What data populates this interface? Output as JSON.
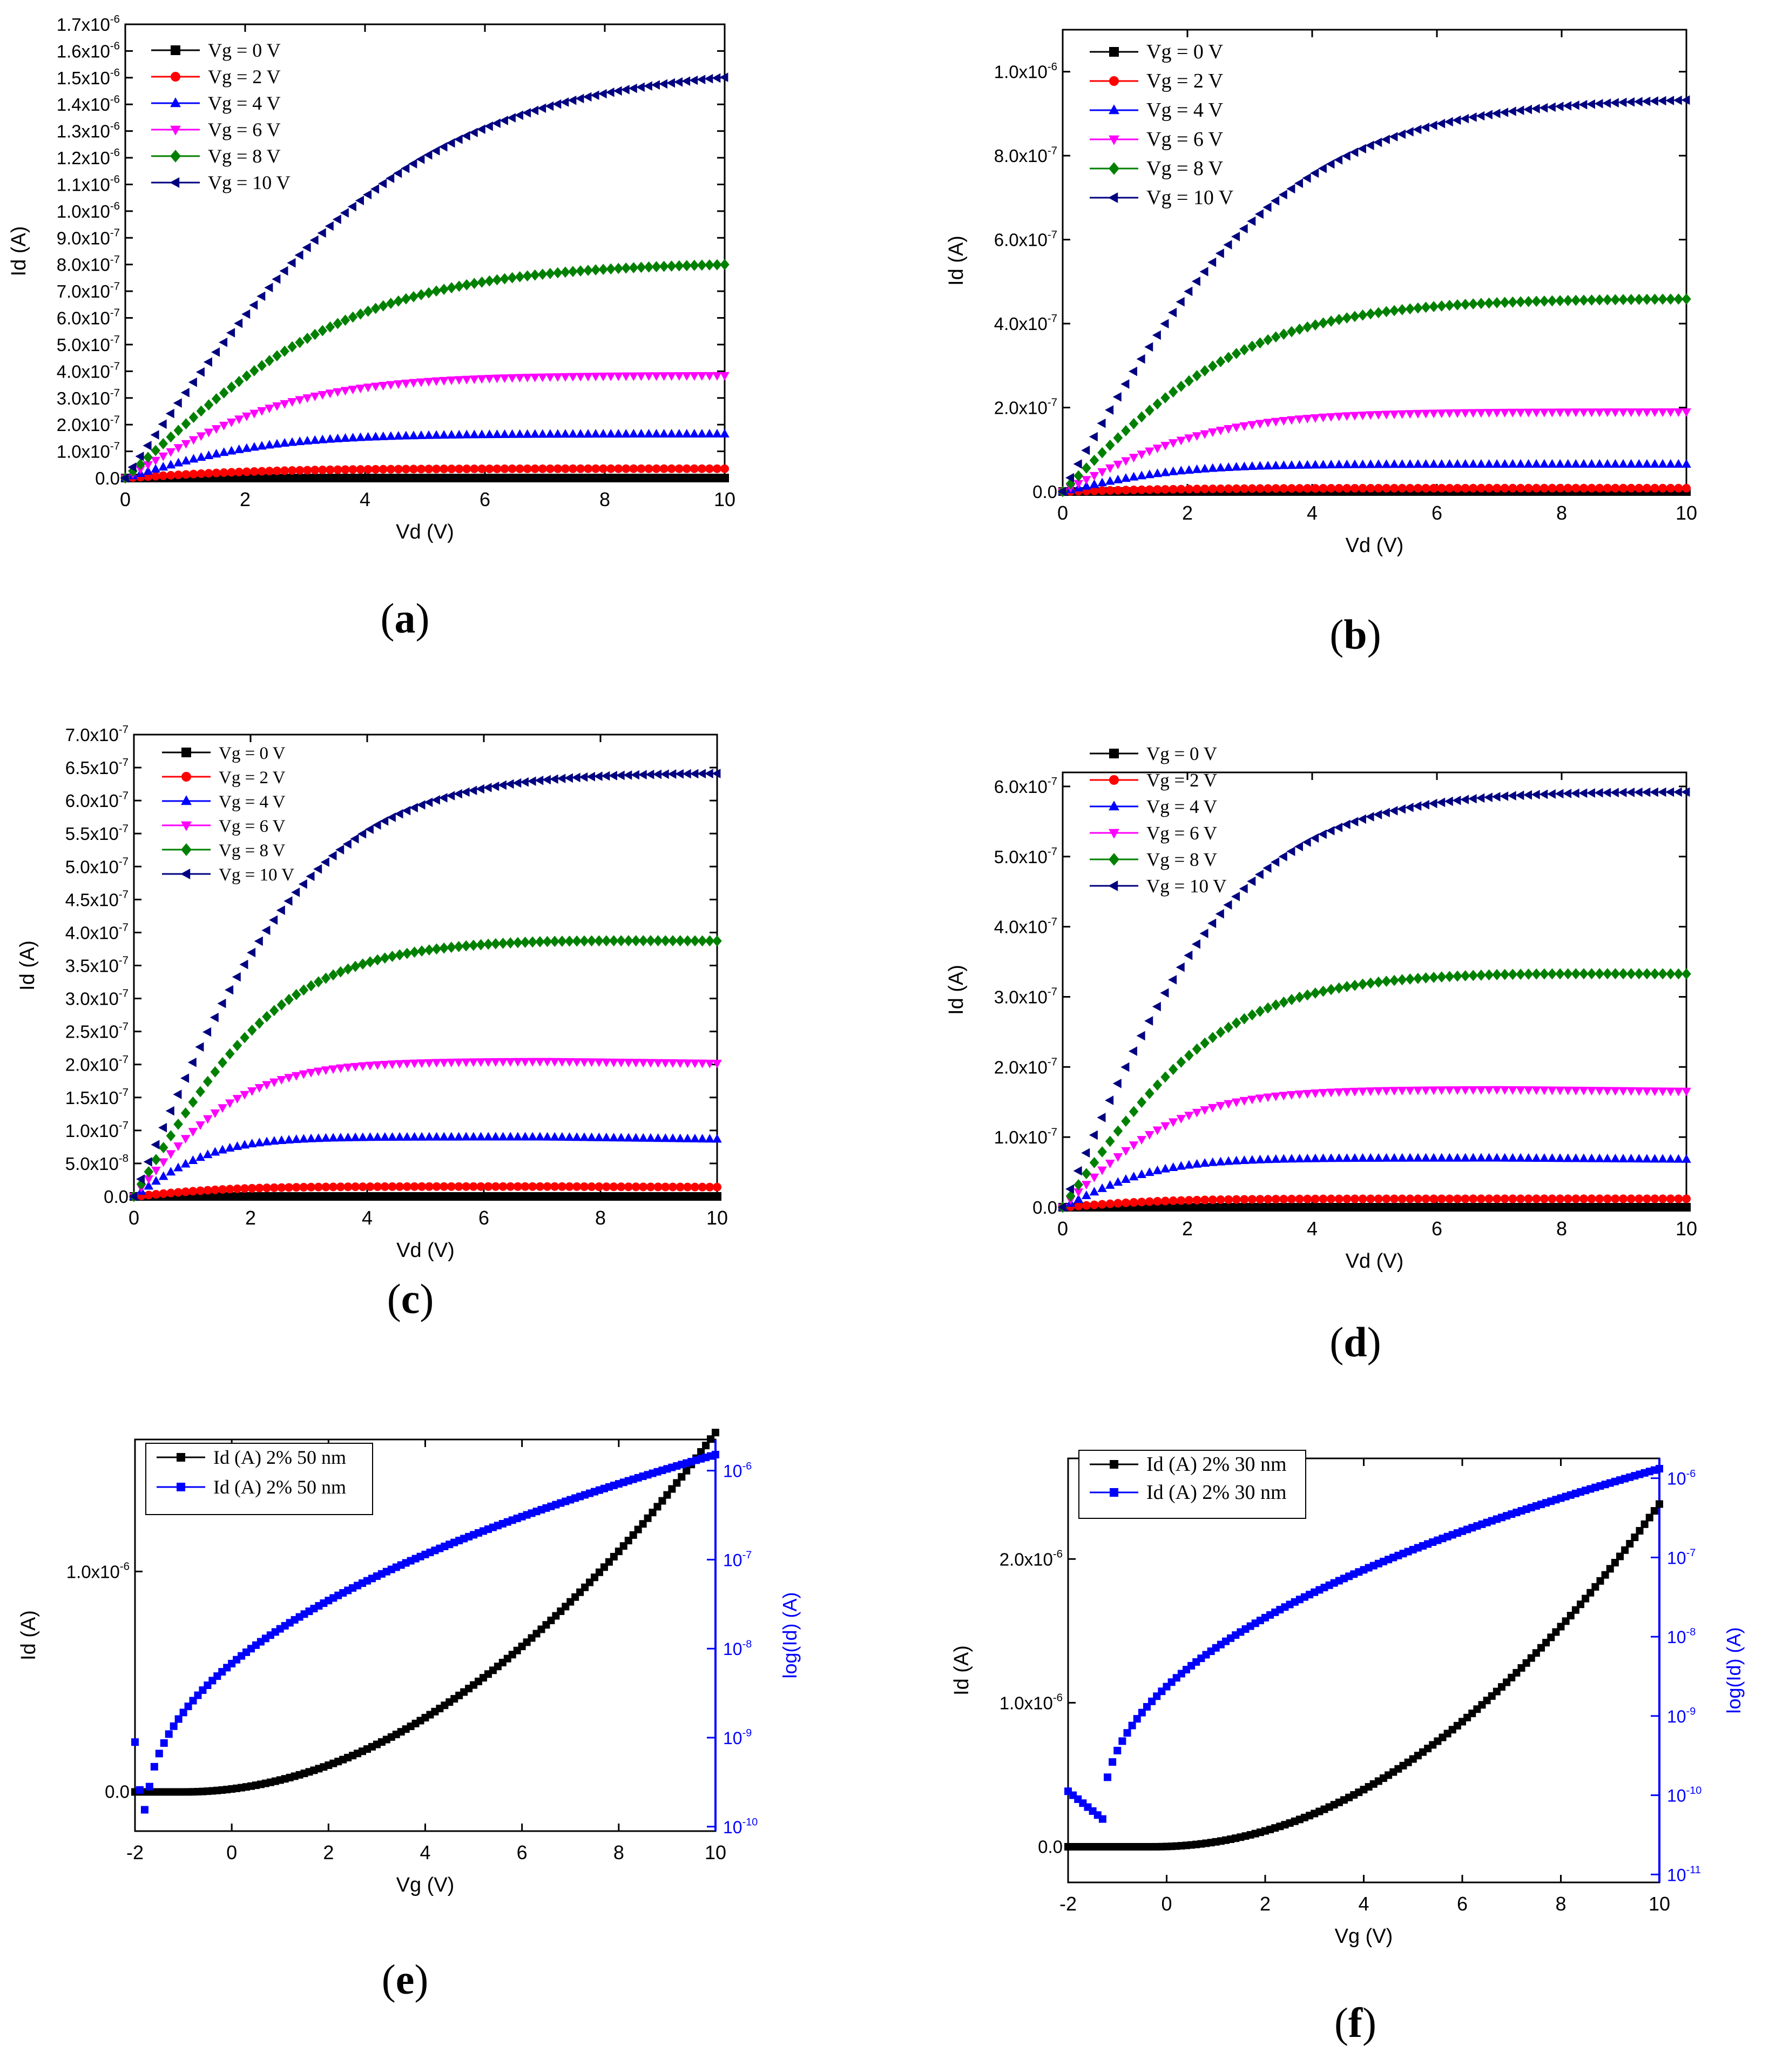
{
  "chart_data": [
    {
      "id": "a",
      "caption_letter": "a",
      "type": "line",
      "xlabel": "Vd (V)",
      "ylabel": "Id (A)",
      "xlim": [
        0,
        10
      ],
      "ylim": [
        0,
        1.7e-06
      ],
      "xticks": [
        "0",
        "2",
        "4",
        "6",
        "8",
        "10"
      ],
      "yticks": [
        {
          "mant": "0.0",
          "exp": ""
        },
        {
          "mant": "1.0x10",
          "exp": "-7"
        },
        {
          "mant": "2.0x10",
          "exp": "-7"
        },
        {
          "mant": "3.0x10",
          "exp": "-7"
        },
        {
          "mant": "4.0x10",
          "exp": "-7"
        },
        {
          "mant": "5.0x10",
          "exp": "-7"
        },
        {
          "mant": "6.0x10",
          "exp": "-7"
        },
        {
          "mant": "7.0x10",
          "exp": "-7"
        },
        {
          "mant": "8.0x10",
          "exp": "-7"
        },
        {
          "mant": "9.0x10",
          "exp": "-7"
        },
        {
          "mant": "1.0x10",
          "exp": "-6"
        },
        {
          "mant": "1.1x10",
          "exp": "-6"
        },
        {
          "mant": "1.2x10",
          "exp": "-6"
        },
        {
          "mant": "1.3x10",
          "exp": "-6"
        },
        {
          "mant": "1.4x10",
          "exp": "-6"
        },
        {
          "mant": "1.5x10",
          "exp": "-6"
        },
        {
          "mant": "1.6x10",
          "exp": "-6"
        },
        {
          "mant": "1.7x10",
          "exp": "-6"
        }
      ],
      "ytick_values": [
        0,
        1e-07,
        2e-07,
        3e-07,
        4e-07,
        5e-07,
        6e-07,
        7e-07,
        8e-07,
        9e-07,
        1e-06,
        1.1e-06,
        1.2e-06,
        1.3e-06,
        1.4e-06,
        1.5e-06,
        1.6e-06,
        1.7e-06
      ],
      "series": [
        {
          "name": "Vg = 0 V",
          "color": "#000000",
          "marker": "square",
          "sat": 0,
          "k": 0.35
        },
        {
          "name": "Vg = 2 V",
          "color": "#ff0000",
          "marker": "circle",
          "sat": 3.5e-08,
          "k": 0.35
        },
        {
          "name": "Vg = 4 V",
          "color": "#0000ff",
          "marker": "triangle-up",
          "sat": 1.65e-07,
          "k": 0.35
        },
        {
          "name": "Vg = 6 V",
          "color": "#ff00ff",
          "marker": "triangle-down",
          "sat": 3.85e-07,
          "k": 0.3
        },
        {
          "name": "Vg = 8 V",
          "color": "#008000",
          "marker": "diamond",
          "sat": 8.1e-07,
          "k": 0.22
        },
        {
          "name": "Vg = 10 V",
          "color": "#000080",
          "marker": "triangle-left",
          "sat": 1.55e-06,
          "k": 0.18
        }
      ]
    },
    {
      "id": "b",
      "caption_letter": "b",
      "type": "line",
      "xlabel": "Vd (V)",
      "ylabel": "Id (A)",
      "xlim": [
        0,
        10
      ],
      "ylim": [
        0,
        1.1e-06
      ],
      "xticks": [
        "0",
        "2",
        "4",
        "6",
        "8",
        "10"
      ],
      "yticks": [
        {
          "mant": "0.0",
          "exp": ""
        },
        {
          "mant": "2.0x10",
          "exp": "-7"
        },
        {
          "mant": "4.0x10",
          "exp": "-7"
        },
        {
          "mant": "6.0x10",
          "exp": "-7"
        },
        {
          "mant": "8.0x10",
          "exp": "-7"
        },
        {
          "mant": "1.0x10",
          "exp": "-6"
        }
      ],
      "ytick_values": [
        0,
        2e-07,
        4e-07,
        6e-07,
        8e-07,
        1e-06
      ],
      "series": [
        {
          "name": "Vg = 0 V",
          "color": "#000000",
          "marker": "square",
          "sat": 0,
          "k": 0.4
        },
        {
          "name": "Vg = 2 V",
          "color": "#ff0000",
          "marker": "circle",
          "sat": 8e-09,
          "k": 0.4
        },
        {
          "name": "Vg = 4 V",
          "color": "#0000ff",
          "marker": "triangle-up",
          "sat": 6.5e-08,
          "k": 0.45
        },
        {
          "name": "Vg = 6 V",
          "color": "#ff00ff",
          "marker": "triangle-down",
          "sat": 1.9e-07,
          "k": 0.35
        },
        {
          "name": "Vg = 8 V",
          "color": "#008000",
          "marker": "diamond",
          "sat": 4.6e-07,
          "k": 0.28
        },
        {
          "name": "Vg = 10 V",
          "color": "#000080",
          "marker": "triangle-left",
          "sat": 9.4e-07,
          "k": 0.24
        }
      ]
    },
    {
      "id": "c",
      "caption_letter": "c",
      "type": "line",
      "xlabel": "Vd (V)",
      "ylabel": "Id (A)",
      "xlim": [
        0,
        10
      ],
      "ylim": [
        0,
        7e-07
      ],
      "xticks": [
        "0",
        "2",
        "4",
        "6",
        "8",
        "10"
      ],
      "yticks": [
        {
          "mant": "0.0",
          "exp": ""
        },
        {
          "mant": "5.0x10",
          "exp": "-8"
        },
        {
          "mant": "1.0x10",
          "exp": "-7"
        },
        {
          "mant": "1.5x10",
          "exp": "-7"
        },
        {
          "mant": "2.0x10",
          "exp": "-7"
        },
        {
          "mant": "2.5x10",
          "exp": "-7"
        },
        {
          "mant": "3.0x10",
          "exp": "-7"
        },
        {
          "mant": "3.5x10",
          "exp": "-7"
        },
        {
          "mant": "4.0x10",
          "exp": "-7"
        },
        {
          "mant": "4.5x10",
          "exp": "-7"
        },
        {
          "mant": "5.0x10",
          "exp": "-7"
        },
        {
          "mant": "5.5x10",
          "exp": "-7"
        },
        {
          "mant": "6.0x10",
          "exp": "-7"
        },
        {
          "mant": "6.5x10",
          "exp": "-7"
        },
        {
          "mant": "7.0x10",
          "exp": "-7"
        }
      ],
      "ytick_values": [
        0,
        5e-08,
        1e-07,
        1.5e-07,
        2e-07,
        2.5e-07,
        3e-07,
        3.5e-07,
        4e-07,
        4.5e-07,
        5e-07,
        5.5e-07,
        6e-07,
        6.5e-07,
        7e-07
      ],
      "series": [
        {
          "name": "Vg = 0 V",
          "color": "#000000",
          "marker": "square",
          "sat": 0,
          "k": 0.5
        },
        {
          "name": "Vg = 2 V",
          "color": "#ff0000",
          "marker": "circle",
          "sat": 1.5e-08,
          "k": 0.5,
          "droop": 0.2
        },
        {
          "name": "Vg = 4 V",
          "color": "#0000ff",
          "marker": "triangle-up",
          "sat": 9e-08,
          "k": 0.6,
          "droop": 0.12
        },
        {
          "name": "Vg = 6 V",
          "color": "#ff00ff",
          "marker": "triangle-down",
          "sat": 2.05e-07,
          "k": 0.45,
          "droop": 0.05
        },
        {
          "name": "Vg = 8 V",
          "color": "#008000",
          "marker": "diamond",
          "sat": 3.9e-07,
          "k": 0.33,
          "droop": 0.02
        },
        {
          "name": "Vg = 10 V",
          "color": "#000080",
          "marker": "triangle-left",
          "sat": 6.45e-07,
          "k": 0.28,
          "droop": 0.01
        }
      ]
    },
    {
      "id": "d",
      "caption_letter": "d",
      "type": "line",
      "xlabel": "Vd (V)",
      "ylabel": "Id (A)",
      "xlim": [
        0,
        10
      ],
      "ylim": [
        0,
        6.2e-07
      ],
      "xticks": [
        "0",
        "2",
        "4",
        "6",
        "8",
        "10"
      ],
      "yticks": [
        {
          "mant": "0.0",
          "exp": ""
        },
        {
          "mant": "1.0x10",
          "exp": "-7"
        },
        {
          "mant": "2.0x10",
          "exp": "-7"
        },
        {
          "mant": "3.0x10",
          "exp": "-7"
        },
        {
          "mant": "4.0x10",
          "exp": "-7"
        },
        {
          "mant": "5.0x10",
          "exp": "-7"
        },
        {
          "mant": "6.0x10",
          "exp": "-7"
        }
      ],
      "ytick_values": [
        0,
        1e-07,
        2e-07,
        3e-07,
        4e-07,
        5e-07,
        6e-07
      ],
      "series": [
        {
          "name": "Vg = 0 V",
          "color": "#000000",
          "marker": "square",
          "sat": 0,
          "k": 0.5
        },
        {
          "name": "Vg = 2 V",
          "color": "#ff0000",
          "marker": "circle",
          "sat": 1.2e-08,
          "k": 0.5
        },
        {
          "name": "Vg = 4 V",
          "color": "#0000ff",
          "marker": "triangle-up",
          "sat": 7e-08,
          "k": 0.55,
          "droop": 0.08
        },
        {
          "name": "Vg = 6 V",
          "color": "#ff00ff",
          "marker": "triangle-down",
          "sat": 1.68e-07,
          "k": 0.45,
          "droop": 0.05
        },
        {
          "name": "Vg = 8 V",
          "color": "#008000",
          "marker": "diamond",
          "sat": 3.35e-07,
          "k": 0.33,
          "droop": 0.02
        },
        {
          "name": "Vg = 10 V",
          "color": "#000080",
          "marker": "triangle-left",
          "sat": 5.95e-07,
          "k": 0.3,
          "droop": 0.01
        }
      ]
    },
    {
      "id": "e",
      "caption_letter": "e",
      "type": "line",
      "dual_axis": true,
      "xlabel": "Vg (V)",
      "ylabel": "Id (A)",
      "ylabel_right": "log(Id) (A)",
      "xlim": [
        -2,
        10
      ],
      "ylim": [
        -1.8e-07,
        1.6e-06
      ],
      "ylim_right_log": [
        -10.05,
        -5.65
      ],
      "xticks": [
        "-2",
        "0",
        "2",
        "4",
        "6",
        "8",
        "10"
      ],
      "xtick_values": [
        -2,
        0,
        2,
        4,
        6,
        8,
        10
      ],
      "yticks": [
        {
          "mant": "0.0",
          "exp": ""
        },
        {
          "mant": "1.0x10",
          "exp": "-6"
        }
      ],
      "ytick_values": [
        0,
        1e-06
      ],
      "yticks_right": [
        {
          "mant": "10",
          "exp": "-10"
        },
        {
          "mant": "10",
          "exp": "-9"
        },
        {
          "mant": "10",
          "exp": "-8"
        },
        {
          "mant": "10",
          "exp": "-7"
        },
        {
          "mant": "10",
          "exp": "-6"
        }
      ],
      "ytick_right_values": [
        -10,
        -9,
        -8,
        -7,
        -6
      ],
      "series": [
        {
          "name": "Id (A) 2% 50 nm",
          "color": "#000000",
          "marker": "square",
          "axis": "left",
          "vt": -1.0,
          "kk": 1.35e-08,
          "pw": 2.0
        },
        {
          "name": "Id (A) 2% 50 nm",
          "color": "#0000ff",
          "marker": "square",
          "axis": "right",
          "vmin": -1.75,
          "logmin": -9.9,
          "logend": -5.82,
          "shape": 0.9
        }
      ]
    },
    {
      "id": "f",
      "caption_letter": "f",
      "type": "line",
      "dual_axis": true,
      "xlabel": "Vg (V)",
      "ylabel": "Id (A)",
      "ylabel_right": "log(Id) (A)",
      "xlim": [
        -2,
        10
      ],
      "ylim": [
        -2.5e-07,
        2.7e-06
      ],
      "ylim_right_log": [
        -11.1,
        -5.75
      ],
      "xticks": [
        "-2",
        "0",
        "2",
        "4",
        "6",
        "8",
        "10"
      ],
      "xtick_values": [
        -2,
        0,
        2,
        4,
        6,
        8,
        10
      ],
      "yticks": [
        {
          "mant": "0.0",
          "exp": ""
        },
        {
          "mant": "1.0x10",
          "exp": "-6"
        },
        {
          "mant": "2.0x10",
          "exp": "-6"
        }
      ],
      "ytick_values": [
        0,
        1e-06,
        2e-06
      ],
      "yticks_right": [
        {
          "mant": "10",
          "exp": "-11"
        },
        {
          "mant": "10",
          "exp": "-10"
        },
        {
          "mant": "10",
          "exp": "-9"
        },
        {
          "mant": "10",
          "exp": "-8"
        },
        {
          "mant": "10",
          "exp": "-7"
        },
        {
          "mant": "10",
          "exp": "-6"
        }
      ],
      "ytick_right_values": [
        -11,
        -10,
        -9,
        -8,
        -7,
        -6
      ],
      "series": [
        {
          "name": "Id (A) 2% 30 nm",
          "color": "#000000",
          "marker": "square",
          "axis": "left",
          "vt": -0.3,
          "kk": 2e-08,
          "pw": 2.05
        },
        {
          "name": "Id (A) 2% 30 nm",
          "color": "#0000ff",
          "marker": "square",
          "axis": "right",
          "vmin": -1.3,
          "logmin": -10.3,
          "logend": -5.88,
          "shape": 0.75,
          "pre": -9.95
        }
      ]
    }
  ]
}
